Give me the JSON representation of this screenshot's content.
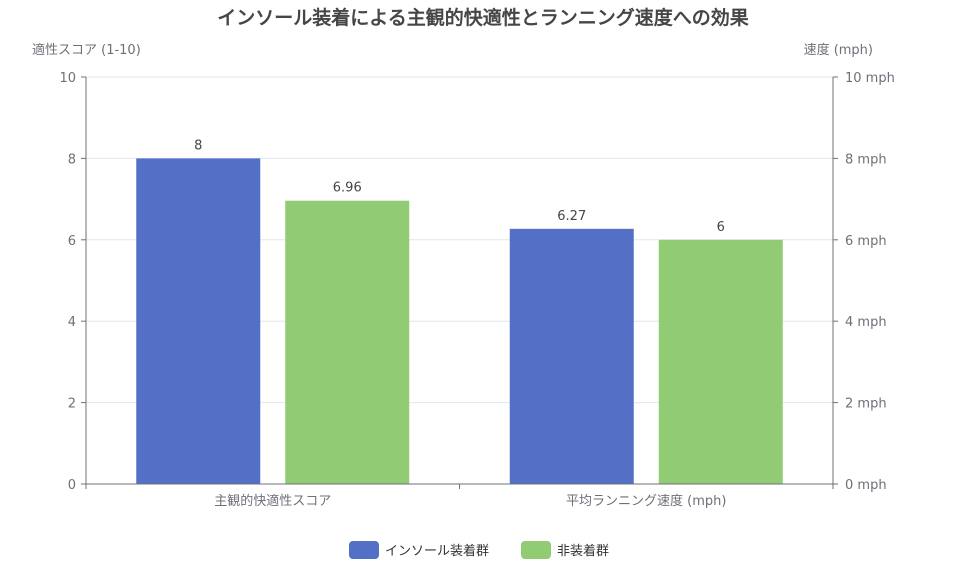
{
  "chart_data": {
    "type": "bar",
    "title": "インソール装着による主観的快適性とランニング速度への効果",
    "categories": [
      "主観的快適性スコア",
      "平均ランニング速度 (mph)"
    ],
    "series": [
      {
        "name": "インソール装着群",
        "values": [
          8,
          6.27
        ],
        "labels": [
          "8",
          "6.27"
        ],
        "color": "#5470c6"
      },
      {
        "name": "非装着群",
        "values": [
          6.96,
          6
        ],
        "labels": [
          "6.96",
          "6"
        ],
        "color": "#91cc75"
      }
    ],
    "y_left": {
      "label": "適性スコア (1-10)",
      "range": [
        0,
        10
      ],
      "ticks": [
        "0",
        "2",
        "4",
        "6",
        "8",
        "10"
      ]
    },
    "y_right": {
      "label": "速度 (mph)",
      "range": [
        0,
        10
      ],
      "ticks": [
        "0 mph",
        "2 mph",
        "4 mph",
        "6 mph",
        "8 mph",
        "10 mph"
      ]
    },
    "grid": true,
    "legend_position": "bottom-center"
  }
}
